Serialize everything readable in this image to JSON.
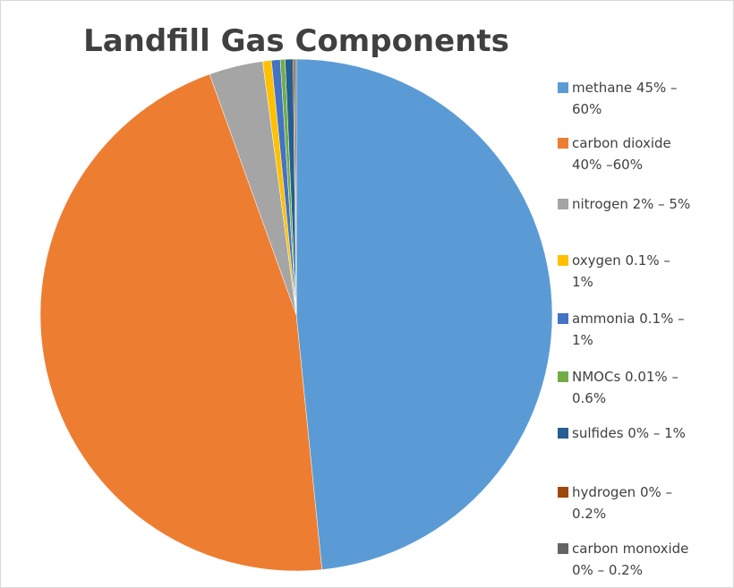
{
  "chart_data": {
    "type": "pie",
    "title": "Landfill Gas Components",
    "labels": [
      "methane 45% –\n60%",
      "carbon dioxide\n40% –60%",
      "nitrogen 2% – 5%",
      "oxygen 0.1% –\n1%",
      "ammonia 0.1% –\n1%",
      "NMOCs  0.01% –\n0.6%",
      "sulfides 0% – 1%",
      "hydrogen 0% –\n0.2%",
      "carbon monoxide\n0% – 0.2%"
    ],
    "values": [
      48.4,
      46.1,
      3.4,
      0.55,
      0.55,
      0.3,
      0.5,
      0.1,
      0.1
    ],
    "colors": [
      "#5b9bd5",
      "#ed7d31",
      "#a5a5a5",
      "#ffc000",
      "#4472c4",
      "#70ad47",
      "#255e91",
      "#9e480e",
      "#636363"
    ],
    "legend": "right"
  }
}
